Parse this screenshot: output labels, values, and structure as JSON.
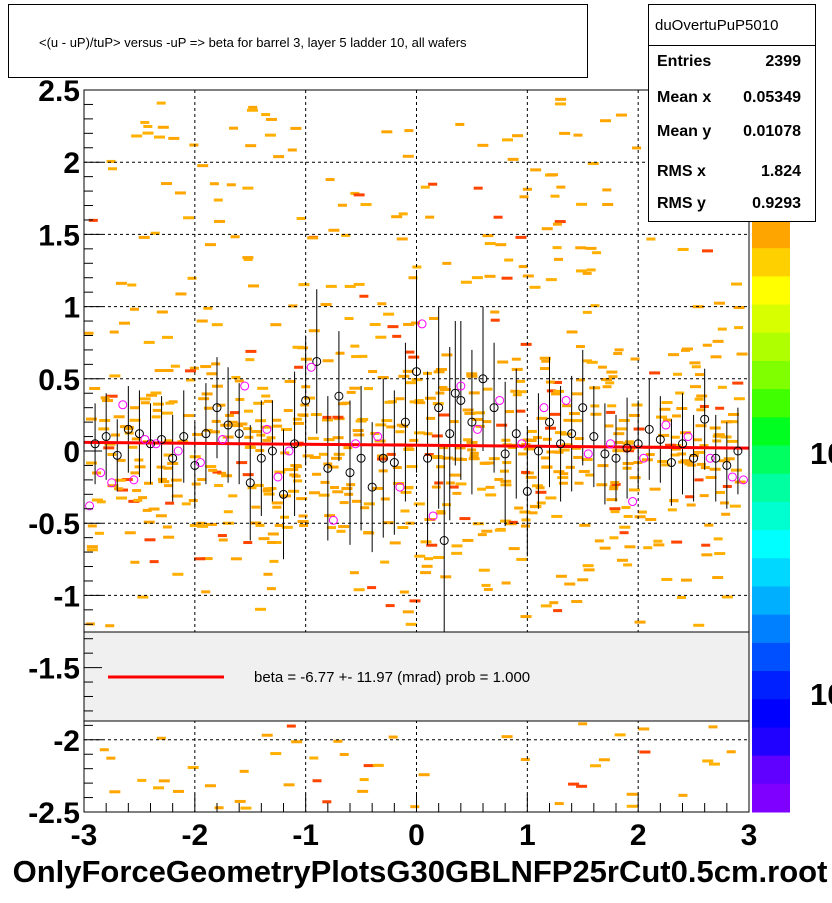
{
  "title": "<(u - uP)/tuP> versus  -uP => beta for barrel 3, layer 5 ladder 10, all wafers",
  "stats": {
    "name": "duOvertuPuP5010",
    "rows": [
      {
        "key": "Entries",
        "value": "2399"
      },
      {
        "key": "Mean x",
        "value": "0.05349"
      },
      {
        "key": "Mean y",
        "value": "0.01078"
      },
      {
        "key": "RMS x",
        "value": "1.824"
      },
      {
        "key": "RMS y",
        "value": "0.9293"
      }
    ]
  },
  "legend": {
    "text": "beta =   -6.77 +- 11.97 (mrad) prob = 1.000",
    "line_color": "#ff0000"
  },
  "footer_label": "OnlyForceGeometryPlotsG30GBLNFP25rCut0.5cm.root",
  "palette_labels": [
    "10",
    "10"
  ],
  "chart_data": {
    "type": "scatter",
    "title": "<(u - uP)/tuP> versus  -uP => beta for barrel 3, layer 5 ladder 10, all wafers",
    "xlim": [
      -3,
      3
    ],
    "ylim": [
      -2.5,
      2.5
    ],
    "x_ticks": [
      "-3",
      "-2",
      "-1",
      "0",
      "1",
      "2",
      "3"
    ],
    "y_ticks": [
      "-2.5",
      "-2",
      "-1.5",
      "-1",
      "-0.5",
      "0",
      "0.5",
      "1",
      "1.5",
      "2",
      "2.5"
    ],
    "grid": true,
    "fit_line": {
      "x": [
        -3,
        3
      ],
      "y": [
        0.06,
        0.02
      ],
      "color": "#ff0000"
    },
    "series": [
      {
        "kind": "profile-black",
        "color": "#000000",
        "points": [
          [
            -2.9,
            0.05,
            0.28
          ],
          [
            -2.8,
            0.1,
            0.3
          ],
          [
            -2.7,
            -0.03,
            0.25
          ],
          [
            -2.6,
            0.15,
            0.3
          ],
          [
            -2.5,
            0.12,
            0.3
          ],
          [
            -2.4,
            0.05,
            0.28
          ],
          [
            -2.3,
            0.08,
            0.3
          ],
          [
            -2.2,
            -0.05,
            0.3
          ],
          [
            -2.1,
            0.1,
            0.32
          ],
          [
            -2.0,
            -0.1,
            0.3
          ],
          [
            -1.9,
            0.12,
            0.35
          ],
          [
            -1.8,
            0.3,
            0.35
          ],
          [
            -1.7,
            0.18,
            0.4
          ],
          [
            -1.6,
            0.12,
            0.35
          ],
          [
            -1.5,
            -0.22,
            0.4
          ],
          [
            -1.4,
            -0.05,
            0.4
          ],
          [
            -1.3,
            0.0,
            0.35
          ],
          [
            -1.2,
            -0.3,
            0.45
          ],
          [
            -1.1,
            0.05,
            0.5
          ],
          [
            -1.0,
            0.35,
            0.45
          ],
          [
            -0.9,
            0.62,
            0.5
          ],
          [
            -0.8,
            -0.12,
            0.5
          ],
          [
            -0.7,
            0.38,
            0.45
          ],
          [
            -0.6,
            -0.15,
            0.5
          ],
          [
            -0.5,
            -0.05,
            0.5
          ],
          [
            -0.4,
            -0.25,
            0.45
          ],
          [
            -0.3,
            -0.05,
            0.55
          ],
          [
            -0.2,
            -0.08,
            0.5
          ],
          [
            -0.1,
            0.2,
            0.55
          ],
          [
            0.0,
            0.55,
            0.7
          ],
          [
            0.1,
            -0.05,
            0.6
          ],
          [
            0.2,
            0.3,
            0.7
          ],
          [
            0.25,
            -0.62,
            0.65
          ],
          [
            0.3,
            0.12,
            0.6
          ],
          [
            0.35,
            0.4,
            0.5
          ],
          [
            0.4,
            0.35,
            0.55
          ],
          [
            0.5,
            0.2,
            0.5
          ],
          [
            0.6,
            0.5,
            0.5
          ],
          [
            0.7,
            0.3,
            0.45
          ],
          [
            0.8,
            -0.02,
            0.5
          ],
          [
            0.9,
            0.12,
            0.45
          ],
          [
            1.0,
            -0.28,
            0.45
          ],
          [
            1.1,
            0.0,
            0.4
          ],
          [
            1.2,
            0.2,
            0.45
          ],
          [
            1.3,
            0.05,
            0.4
          ],
          [
            1.4,
            0.12,
            0.4
          ],
          [
            1.5,
            0.3,
            0.4
          ],
          [
            1.6,
            0.1,
            0.35
          ],
          [
            1.7,
            -0.02,
            0.35
          ],
          [
            1.8,
            -0.05,
            0.3
          ],
          [
            1.9,
            0.02,
            0.35
          ],
          [
            2.0,
            0.05,
            0.3
          ],
          [
            2.1,
            0.15,
            0.35
          ],
          [
            2.2,
            0.08,
            0.3
          ],
          [
            2.3,
            -0.08,
            0.3
          ],
          [
            2.4,
            0.05,
            0.35
          ],
          [
            2.5,
            -0.05,
            0.3
          ],
          [
            2.6,
            0.22,
            0.35
          ],
          [
            2.7,
            -0.05,
            0.3
          ],
          [
            2.8,
            -0.1,
            0.3
          ],
          [
            2.9,
            0.0,
            0.3
          ]
        ]
      },
      {
        "kind": "profile-magenta",
        "color": "#ff00ff",
        "points": [
          [
            -2.95,
            -0.38
          ],
          [
            -2.85,
            -0.15
          ],
          [
            -2.75,
            -0.22
          ],
          [
            -2.65,
            0.32
          ],
          [
            -2.55,
            -0.2
          ],
          [
            -2.45,
            0.08
          ],
          [
            -2.35,
            0.05
          ],
          [
            -2.15,
            0.0
          ],
          [
            -1.95,
            -0.08
          ],
          [
            -1.75,
            0.08
          ],
          [
            -1.55,
            0.45
          ],
          [
            -1.35,
            0.15
          ],
          [
            -1.25,
            -0.18
          ],
          [
            -1.15,
            0.0
          ],
          [
            -0.95,
            0.58
          ],
          [
            -0.75,
            -0.48
          ],
          [
            -0.55,
            0.05
          ],
          [
            -0.35,
            0.1
          ],
          [
            -0.15,
            -0.25
          ],
          [
            0.05,
            0.88
          ],
          [
            0.15,
            -0.45
          ],
          [
            0.4,
            0.45
          ],
          [
            0.55,
            0.15
          ],
          [
            0.75,
            0.35
          ],
          [
            0.95,
            0.05
          ],
          [
            1.15,
            0.3
          ],
          [
            1.35,
            0.35
          ],
          [
            1.55,
            -0.02
          ],
          [
            1.75,
            0.05
          ],
          [
            1.95,
            -0.35
          ],
          [
            2.05,
            -0.05
          ],
          [
            2.25,
            0.18
          ],
          [
            2.45,
            0.1
          ],
          [
            2.65,
            -0.05
          ],
          [
            2.85,
            -0.18
          ],
          [
            2.95,
            -0.2
          ]
        ]
      }
    ]
  }
}
